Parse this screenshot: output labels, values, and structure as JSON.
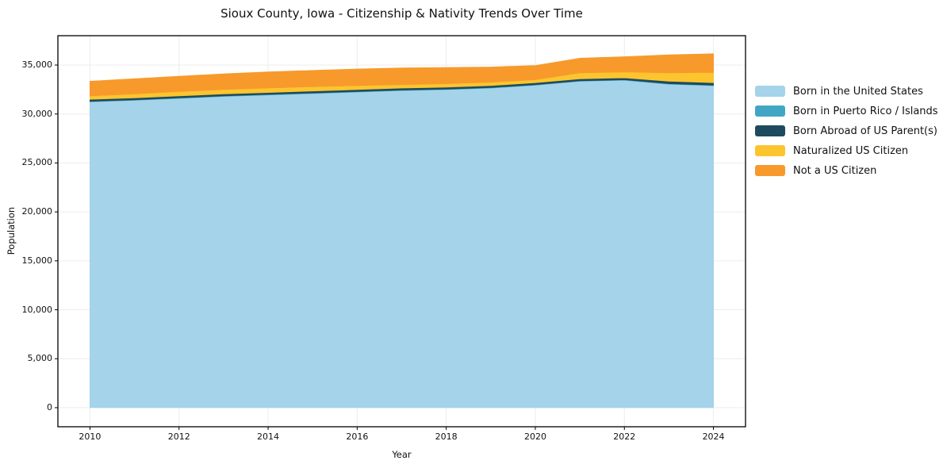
{
  "chart_data": {
    "type": "area",
    "stacked": true,
    "title": "Sioux County, Iowa - Citizenship & Nativity Trends Over Time",
    "xlabel": "Year",
    "ylabel": "Population",
    "x": [
      2010,
      2011,
      2012,
      2013,
      2014,
      2015,
      2016,
      2017,
      2018,
      2019,
      2020,
      2021,
      2022,
      2023,
      2024
    ],
    "series": [
      {
        "name": "Born in the United States",
        "color": "#A4D3EA",
        "values": [
          31250,
          31400,
          31600,
          31800,
          31950,
          32100,
          32250,
          32400,
          32500,
          32650,
          32950,
          33350,
          33450,
          33050,
          32900
        ]
      },
      {
        "name": "Born in Puerto Rico / Islands",
        "color": "#41A6C3",
        "values": [
          50,
          50,
          50,
          50,
          50,
          50,
          50,
          50,
          50,
          50,
          50,
          50,
          50,
          50,
          50
        ]
      },
      {
        "name": "Born Abroad of US Parent(s)",
        "color": "#1E4A5F",
        "values": [
          200,
          200,
          200,
          200,
          200,
          200,
          200,
          200,
          200,
          200,
          200,
          200,
          200,
          250,
          250
        ]
      },
      {
        "name": "Naturalized US Citizen",
        "color": "#FCC52F",
        "values": [
          350,
          400,
          450,
          450,
          450,
          450,
          400,
          350,
          350,
          350,
          300,
          600,
          600,
          850,
          1050
        ]
      },
      {
        "name": "Not a US Citizen",
        "color": "#F79A2B",
        "values": [
          1500,
          1550,
          1550,
          1600,
          1650,
          1650,
          1700,
          1700,
          1650,
          1550,
          1450,
          1500,
          1550,
          1850,
          1900
        ]
      }
    ],
    "x_ticks": {
      "values": [
        2010,
        2012,
        2014,
        2016,
        2018,
        2020,
        2022,
        2024
      ],
      "labels": [
        "2010",
        "2012",
        "2014",
        "2016",
        "2018",
        "2020",
        "2022",
        "2024"
      ]
    },
    "y_ticks": {
      "values": [
        0,
        5000,
        10000,
        15000,
        20000,
        25000,
        30000,
        35000
      ],
      "labels": [
        "0",
        "5,000",
        "10,000",
        "15,000",
        "20,000",
        "25,000",
        "30,000",
        "35,000"
      ]
    },
    "xlim": [
      2009.28,
      2024.72
    ],
    "ylim": [
      -1950,
      38000
    ],
    "grid": true,
    "legend_position": "right"
  }
}
